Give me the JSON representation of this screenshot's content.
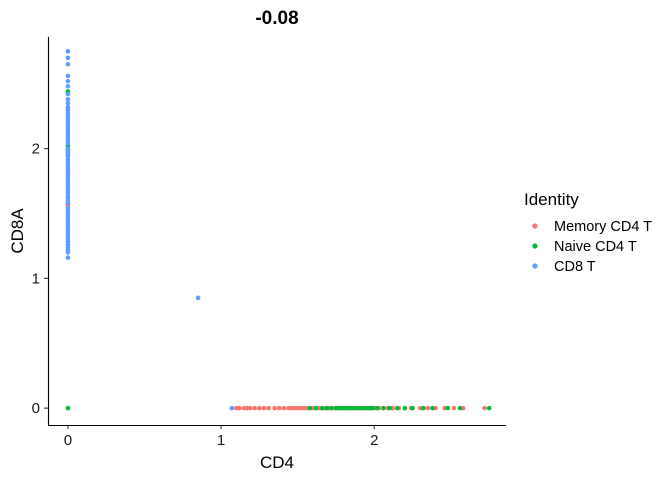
{
  "chart_data": {
    "type": "scatter",
    "title": "-0.08",
    "xlabel": "CD4",
    "ylabel": "CD8A",
    "xlim": [
      -0.13,
      2.86
    ],
    "ylim": [
      -0.13,
      2.86
    ],
    "xticks": [
      0,
      1,
      2
    ],
    "yticks": [
      0,
      1,
      2
    ],
    "grid": false,
    "legend": {
      "title": "Identity",
      "position": "right"
    },
    "series": [
      {
        "name": "Memory CD4 T",
        "color": "#F8766D",
        "points": [
          [
            0,
            1.56
          ],
          [
            0,
            1.57
          ],
          [
            1.1,
            0
          ],
          [
            1.12,
            0
          ],
          [
            1.15,
            0
          ],
          [
            1.17,
            0
          ],
          [
            1.19,
            0
          ],
          [
            1.22,
            0
          ],
          [
            1.25,
            0
          ],
          [
            1.28,
            0
          ],
          [
            1.31,
            0
          ],
          [
            1.35,
            0
          ],
          [
            1.38,
            0
          ],
          [
            1.41,
            0
          ],
          [
            1.44,
            0
          ],
          [
            1.46,
            0
          ],
          [
            1.48,
            0
          ],
          [
            1.5,
            0
          ],
          [
            1.52,
            0
          ],
          [
            1.54,
            0
          ],
          [
            1.56,
            0
          ],
          [
            1.58,
            0
          ],
          [
            1.6,
            0
          ],
          [
            1.62,
            0
          ],
          [
            1.64,
            0
          ],
          [
            1.66,
            0
          ],
          [
            1.68,
            0
          ],
          [
            1.7,
            0
          ],
          [
            1.72,
            0
          ],
          [
            1.74,
            0
          ],
          [
            1.76,
            0
          ],
          [
            1.78,
            0
          ],
          [
            1.8,
            0
          ],
          [
            1.82,
            0
          ],
          [
            1.84,
            0
          ],
          [
            1.86,
            0
          ],
          [
            1.88,
            0
          ],
          [
            1.9,
            0
          ],
          [
            1.92,
            0
          ],
          [
            1.94,
            0
          ],
          [
            1.96,
            0
          ],
          [
            1.98,
            0
          ],
          [
            2.0,
            0
          ],
          [
            2.03,
            0
          ],
          [
            2.06,
            0
          ],
          [
            2.09,
            0
          ],
          [
            2.12,
            0
          ],
          [
            2.16,
            0
          ],
          [
            2.2,
            0
          ],
          [
            2.24,
            0
          ],
          [
            2.3,
            0
          ],
          [
            2.35,
            0
          ],
          [
            2.4,
            0
          ],
          [
            2.46,
            0
          ],
          [
            2.52,
            0
          ],
          [
            2.58,
            0
          ],
          [
            2.72,
            0
          ]
        ]
      },
      {
        "name": "Naive CD4 T",
        "color": "#00BA38",
        "points": [
          [
            0,
            0
          ],
          [
            0,
            1.95
          ],
          [
            0,
            1.97
          ],
          [
            0,
            1.99
          ],
          [
            0,
            2.02
          ],
          [
            0,
            2.43
          ],
          [
            0,
            2.44
          ],
          [
            1.58,
            0
          ],
          [
            1.62,
            0
          ],
          [
            1.66,
            0
          ],
          [
            1.69,
            0
          ],
          [
            1.72,
            0
          ],
          [
            1.75,
            0
          ],
          [
            1.77,
            0
          ],
          [
            1.79,
            0
          ],
          [
            1.81,
            0
          ],
          [
            1.83,
            0
          ],
          [
            1.85,
            0
          ],
          [
            1.87,
            0
          ],
          [
            1.89,
            0
          ],
          [
            1.91,
            0
          ],
          [
            1.93,
            0
          ],
          [
            1.95,
            0
          ],
          [
            1.97,
            0
          ],
          [
            1.99,
            0
          ],
          [
            2.02,
            0
          ],
          [
            2.06,
            0
          ],
          [
            2.1,
            0
          ],
          [
            2.15,
            0
          ],
          [
            2.2,
            0
          ],
          [
            2.25,
            0
          ],
          [
            2.32,
            0
          ],
          [
            2.38,
            0
          ],
          [
            2.48,
            0
          ],
          [
            2.56,
            0
          ],
          [
            2.75,
            0
          ]
        ]
      },
      {
        "name": "CD8 T",
        "color": "#619CFF",
        "points": [
          [
            0,
            2.75
          ],
          [
            0,
            2.7
          ],
          [
            0,
            2.65
          ],
          [
            0,
            2.56
          ],
          [
            0,
            2.52
          ],
          [
            0,
            2.48
          ],
          [
            0,
            2.42
          ],
          [
            0,
            2.38
          ],
          [
            0,
            2.35
          ],
          [
            0,
            2.32
          ],
          [
            0,
            2.3
          ],
          [
            0,
            2.28
          ],
          [
            0,
            2.26
          ],
          [
            0,
            2.24
          ],
          [
            0,
            2.22
          ],
          [
            0,
            2.2
          ],
          [
            0,
            2.18
          ],
          [
            0,
            2.16
          ],
          [
            0,
            2.14
          ],
          [
            0,
            2.12
          ],
          [
            0,
            2.1
          ],
          [
            0,
            2.08
          ],
          [
            0,
            2.06
          ],
          [
            0,
            2.04
          ],
          [
            0,
            2.0
          ],
          [
            0,
            1.98
          ],
          [
            0,
            1.96
          ],
          [
            0,
            1.94
          ],
          [
            0,
            1.92
          ],
          [
            0,
            1.9
          ],
          [
            0,
            1.88
          ],
          [
            0,
            1.86
          ],
          [
            0,
            1.84
          ],
          [
            0,
            1.82
          ],
          [
            0,
            1.8
          ],
          [
            0,
            1.78
          ],
          [
            0,
            1.76
          ],
          [
            0,
            1.74
          ],
          [
            0,
            1.72
          ],
          [
            0,
            1.7
          ],
          [
            0,
            1.68
          ],
          [
            0,
            1.66
          ],
          [
            0,
            1.64
          ],
          [
            0,
            1.62
          ],
          [
            0,
            1.6
          ],
          [
            0,
            1.58
          ],
          [
            0,
            1.54
          ],
          [
            0,
            1.52
          ],
          [
            0,
            1.5
          ],
          [
            0,
            1.48
          ],
          [
            0,
            1.46
          ],
          [
            0,
            1.44
          ],
          [
            0,
            1.42
          ],
          [
            0,
            1.4
          ],
          [
            0,
            1.38
          ],
          [
            0,
            1.36
          ],
          [
            0,
            1.34
          ],
          [
            0,
            1.32
          ],
          [
            0,
            1.3
          ],
          [
            0,
            1.28
          ],
          [
            0,
            1.26
          ],
          [
            0,
            1.24
          ],
          [
            0,
            1.22
          ],
          [
            0,
            1.2
          ],
          [
            0,
            1.16
          ],
          [
            0.85,
            0.85
          ],
          [
            1.07,
            0
          ]
        ]
      }
    ]
  }
}
